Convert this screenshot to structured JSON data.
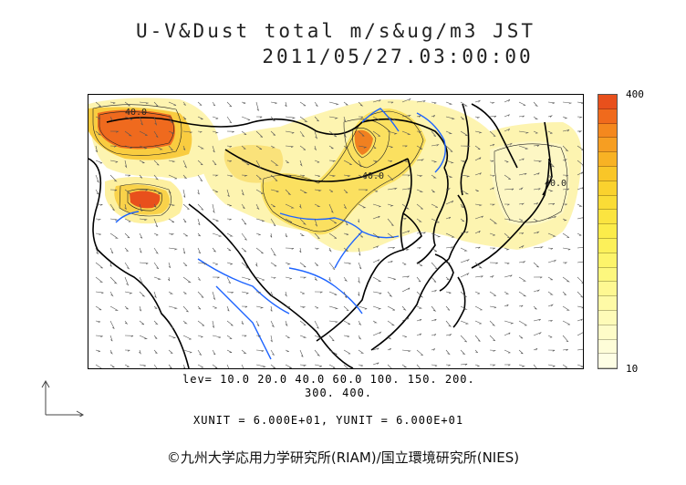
{
  "title_line1": "U-V&Dust total m/s&ug/m3 JST",
  "title_line2": "2011/05/27.03:00:00",
  "colorbar": {
    "max_label": "400",
    "min_label": "10",
    "colors": [
      "#e8501c",
      "#f06a1c",
      "#f4881e",
      "#f69e22",
      "#f8b224",
      "#f9c628",
      "#fad22e",
      "#fadc36",
      "#fbe440",
      "#fcec4a",
      "#fcf05a",
      "#fdf46a",
      "#fdf77e",
      "#fef892",
      "#fefaa6",
      "#fefbb8",
      "#fefcc8",
      "#fefdd8",
      "#fefee4"
    ]
  },
  "levels_line1": "lev= 10.0 20.0 40.0 60.0 100. 150. 200.",
  "levels_line2": "300. 400.",
  "units": "XUNIT = 6.000E+01, YUNIT = 6.000E+01",
  "copyright": "©九州大学応用力学研究所(RIAM)/国立環境研究所(NIES)",
  "contour_labels": [
    "40.0",
    "40.0",
    "40.0"
  ],
  "colors": {
    "coast": "#000000",
    "rivers": "#1e64ff",
    "low_dust": "#fdf4b0",
    "mid_dust": "#f9d24a",
    "high_dust": "#e8501c"
  }
}
